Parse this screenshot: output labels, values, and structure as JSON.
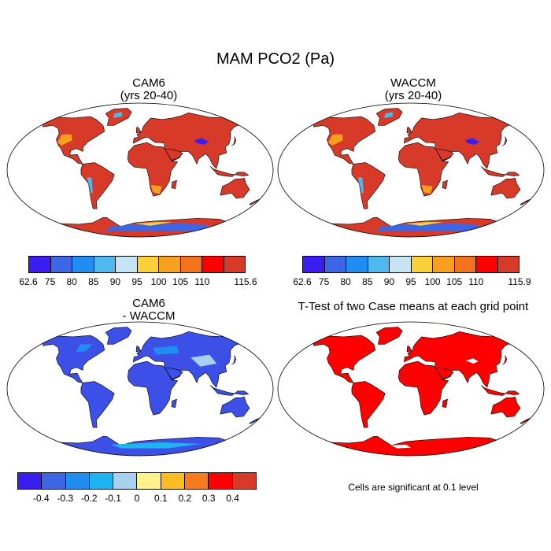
{
  "title": "MAM PCO2 (Pa)",
  "panels": [
    {
      "id": "cam6",
      "title_line1": "CAM6",
      "title_line2": "(yrs 20-40)",
      "fill": "diverging",
      "land_color": "#d83a2a"
    },
    {
      "id": "waccm",
      "title_line1": "WACCM",
      "title_line2": "(yrs 20-40)",
      "fill": "diverging",
      "land_color": "#d83a2a"
    },
    {
      "id": "diff",
      "title_line1": "CAM6",
      "title_line2": "- WACCM",
      "fill": "blue",
      "land_color": "#3c4fe6"
    },
    {
      "id": "ttest",
      "title_line1": "T-Test of two Case means at each grid point",
      "title_line2": "",
      "fill": "red",
      "land_color": "#ff0000"
    }
  ],
  "colorbars": {
    "cam6": {
      "labels": [
        "62.6",
        "75",
        "80",
        "85",
        "90",
        "95",
        "100",
        "105",
        "110",
        "115.6"
      ],
      "colors": [
        "#3a1ef0",
        "#3c66e6",
        "#1f8ef0",
        "#4fb8ec",
        "#c6e4f4",
        "#fcd03a",
        "#f5a021",
        "#f3731d",
        "#ff0000",
        "#d83a2a"
      ]
    },
    "waccm": {
      "labels": [
        "62.6",
        "75",
        "80",
        "85",
        "90",
        "95",
        "100",
        "105",
        "110",
        "115.9"
      ],
      "colors": [
        "#3a1ef0",
        "#3c66e6",
        "#1f8ef0",
        "#4fb8ec",
        "#c6e4f4",
        "#fcd03a",
        "#f5a021",
        "#f3731d",
        "#ff0000",
        "#d83a2a"
      ]
    },
    "diff": {
      "labels": [
        "-0.4",
        "-0.3",
        "-0.2",
        "-0.1",
        "0",
        "0.1",
        "0.2",
        "0.3",
        "0.4"
      ],
      "colors": [
        "#3a1ef0",
        "#3c66e6",
        "#1f8ef0",
        "#1db4f0",
        "#a6d2f0",
        "#fdf28c",
        "#fcbc24",
        "#f77a1d",
        "#ff0000",
        "#d83a2a"
      ]
    }
  },
  "note": "Cells are significant at 0.1 level"
}
